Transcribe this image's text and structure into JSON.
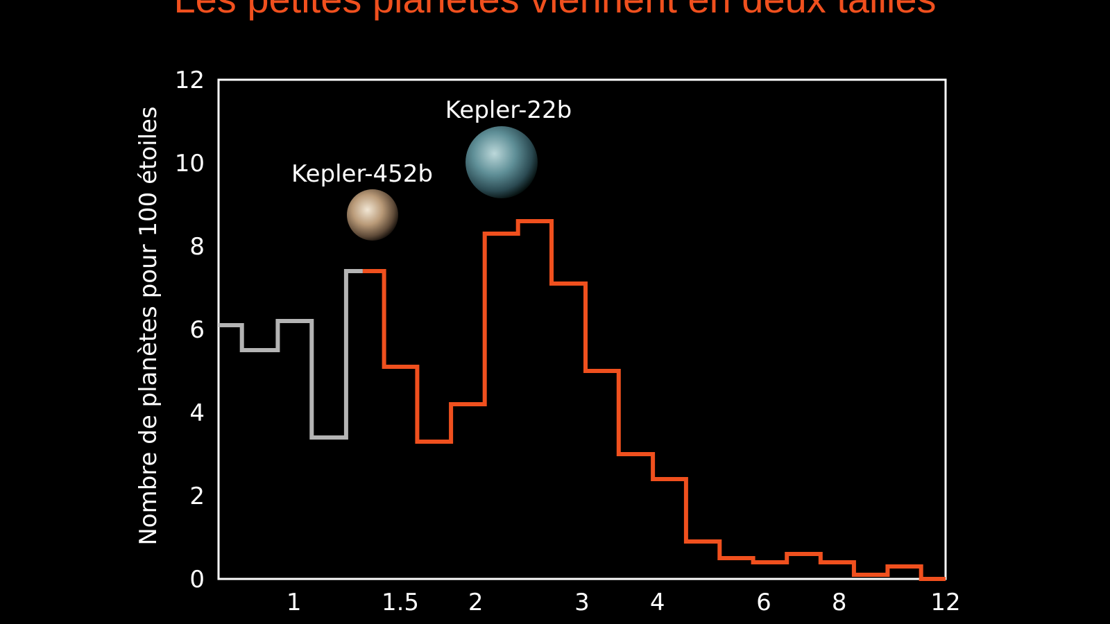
{
  "page": {
    "title": "Les petites planètes viennent en deux tailles"
  },
  "chart_data": {
    "type": "line",
    "subtype": "step-histogram",
    "title": "Les petites planètes viennent en deux tailles",
    "ylabel": "Nombre de planètes pour 100 étoiles",
    "xlabel": "",
    "x_scale": "log",
    "xlim": [
      0.75,
      12
    ],
    "ylim": [
      0,
      12
    ],
    "x_ticks": [
      1,
      1.5,
      2,
      3,
      4,
      6,
      8,
      12
    ],
    "x_tick_labels": [
      "1",
      "1.5",
      "2",
      "3",
      "4",
      "6",
      "8",
      "12"
    ],
    "y_ticks": [
      0,
      2,
      4,
      6,
      8,
      10,
      12
    ],
    "y_tick_labels": [
      "0",
      "2",
      "4",
      "6",
      "8",
      "10",
      "12"
    ],
    "grid": false,
    "series": [
      {
        "color": "#b4b4b4",
        "bin_edges": [
          0.75,
          0.82,
          0.94,
          1.07,
          1.22,
          1.3
        ],
        "values": [
          6.1,
          5.5,
          6.2,
          3.4,
          7.4
        ]
      },
      {
        "color": "#f0501e",
        "bin_edges": [
          1.3,
          1.41,
          1.6,
          1.82,
          2.07,
          2.35,
          2.67,
          3.04,
          3.45,
          3.93,
          4.46,
          5.07,
          5.76,
          6.55,
          7.45,
          8.46,
          9.62,
          10.93,
          12
        ],
        "values": [
          7.4,
          5.1,
          3.3,
          4.2,
          8.3,
          8.6,
          7.1,
          5.0,
          3.0,
          2.4,
          0.9,
          0.5,
          0.4,
          0.6,
          0.4,
          0.1,
          0.3,
          0.0
        ]
      }
    ],
    "annotations": [
      {
        "label": "Kepler-452b",
        "x": 1.6,
        "y": 8.8,
        "icon": "rocky-planet"
      },
      {
        "label": "Kepler-22b",
        "x": 2.4,
        "y": 10.3,
        "icon": "ocean-planet"
      }
    ]
  }
}
